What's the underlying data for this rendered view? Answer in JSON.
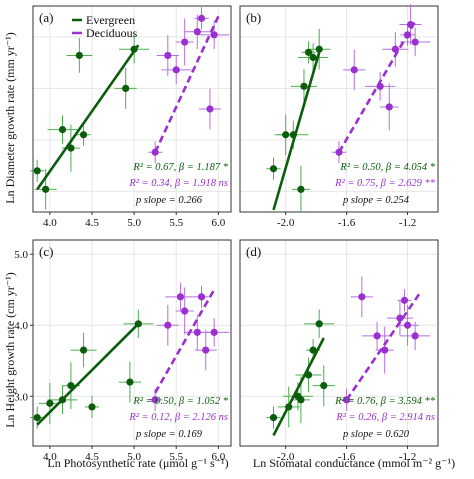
{
  "colors": {
    "evergreen": "#0b5d0b",
    "deciduous": "#9b30d0",
    "errEvergreen": "#4caf50",
    "errDeciduous": "#b86ee3",
    "axis": "#333333",
    "grid": "#e6e6e6"
  },
  "legend": {
    "evergreen": "Evergreen",
    "deciduous": "Deciduous"
  },
  "labels": {
    "y_top": "Ln Diameter growth rate (mm yr⁻¹)",
    "y_bottom": "Ln Height growth rate (cm yr⁻¹)",
    "x_left": "Ln Photosynthetic rate (μmol g⁻¹ s⁻¹)",
    "x_right": "Ln Stomatal conductance (mmol m⁻² g⁻¹)"
  },
  "chart_data": [
    {
      "type": "scatter",
      "panel": "(a)",
      "xlim": [
        3.8,
        6.15
      ],
      "ylim": [
        0.3,
        2.3
      ],
      "xticks": [
        "4.0",
        "4.5",
        "5.0",
        "5.5",
        "6.0"
      ],
      "yticks": [],
      "series": [
        {
          "name": "Evergreen",
          "points": [
            [
              3.85,
              0.7
            ],
            [
              3.95,
              0.52
            ],
            [
              4.15,
              1.1
            ],
            [
              4.25,
              0.92
            ],
            [
              4.35,
              1.82
            ],
            [
              4.4,
              1.05
            ],
            [
              4.9,
              1.5
            ],
            [
              5.0,
              1.88
            ]
          ]
        },
        {
          "name": "Deciduous",
          "points": [
            [
              5.25,
              0.88
            ],
            [
              5.4,
              1.82
            ],
            [
              5.5,
              1.68
            ],
            [
              5.6,
              1.95
            ],
            [
              5.75,
              2.05
            ],
            [
              5.8,
              2.18
            ],
            [
              5.9,
              1.3
            ],
            [
              5.95,
              2.02
            ]
          ]
        }
      ],
      "fits": {
        "evergreen": [
          [
            3.85,
            0.52
          ],
          [
            5.05,
            1.92
          ]
        ],
        "deciduous": [
          [
            5.25,
            0.88
          ],
          [
            6.0,
            2.2
          ]
        ]
      },
      "stats": {
        "evergreen": "R² = 0.67, β = 1.187 *",
        "deciduous": "R² = 0.34, β = 1.918 ns",
        "pslope": "p slope = 0.266"
      }
    },
    {
      "type": "scatter",
      "panel": "(b)",
      "xlim": [
        -2.3,
        -1.0
      ],
      "ylim": [
        0.3,
        2.3
      ],
      "xticks": [
        "-2.0",
        "-1.6",
        "-1.2"
      ],
      "yticks": [],
      "series": [
        {
          "name": "Evergreen",
          "points": [
            [
              -2.08,
              0.72
            ],
            [
              -2.0,
              1.05
            ],
            [
              -1.95,
              1.05
            ],
            [
              -1.9,
              0.52
            ],
            [
              -1.88,
              1.52
            ],
            [
              -1.85,
              1.85
            ],
            [
              -1.78,
              1.88
            ],
            [
              -1.82,
              1.8
            ]
          ]
        },
        {
          "name": "Deciduous",
          "points": [
            [
              -1.65,
              0.88
            ],
            [
              -1.55,
              1.68
            ],
            [
              -1.38,
              1.52
            ],
            [
              -1.32,
              1.32
            ],
            [
              -1.28,
              1.88
            ],
            [
              -1.2,
              2.02
            ],
            [
              -1.18,
              2.12
            ],
            [
              -1.15,
              1.95
            ]
          ]
        }
      ],
      "fits": {
        "evergreen": [
          [
            -2.08,
            0.32
          ],
          [
            -1.78,
            1.85
          ]
        ],
        "deciduous": [
          [
            -1.65,
            0.88
          ],
          [
            -1.15,
            2.15
          ]
        ]
      },
      "stats": {
        "evergreen": "R² = 0.50, β = 4.054 *",
        "deciduous": "R² = 0.75, β = 2.629 **",
        "pslope": "p slope = 0.254"
      }
    },
    {
      "type": "scatter",
      "panel": "(c)",
      "xlim": [
        3.8,
        6.15
      ],
      "ylim": [
        2.3,
        5.2
      ],
      "xticks": [
        "4.0",
        "4.5",
        "5.0",
        "5.5",
        "6.0"
      ],
      "yticks": [
        "3.0",
        "4.0",
        "5.0"
      ],
      "series": [
        {
          "name": "Evergreen",
          "points": [
            [
              3.85,
              2.7
            ],
            [
              4.0,
              2.9
            ],
            [
              4.15,
              2.95
            ],
            [
              4.25,
              3.15
            ],
            [
              4.4,
              3.65
            ],
            [
              4.5,
              2.85
            ],
            [
              4.95,
              3.2
            ],
            [
              5.05,
              4.02
            ]
          ]
        },
        {
          "name": "Deciduous",
          "points": [
            [
              5.25,
              2.95
            ],
            [
              5.4,
              4.0
            ],
            [
              5.55,
              4.4
            ],
            [
              5.6,
              4.2
            ],
            [
              5.75,
              3.9
            ],
            [
              5.8,
              4.4
            ],
            [
              5.85,
              3.65
            ],
            [
              5.95,
              3.9
            ]
          ]
        }
      ],
      "fits": {
        "evergreen": [
          [
            3.85,
            2.6
          ],
          [
            5.05,
            4.02
          ]
        ],
        "deciduous": [
          [
            5.25,
            3.05
          ],
          [
            5.95,
            4.5
          ]
        ]
      },
      "stats": {
        "evergreen": "R² = 0.50, β = 1.052 *",
        "deciduous": "R² = 0.12, β = 2.126 ns",
        "pslope": "p slope = 0.169"
      }
    },
    {
      "type": "scatter",
      "panel": "(d)",
      "xlim": [
        -2.3,
        -1.0
      ],
      "ylim": [
        2.3,
        5.2
      ],
      "xticks": [
        "-2.0",
        "-1.6",
        "-1.2"
      ],
      "yticks": [],
      "series": [
        {
          "name": "Evergreen",
          "points": [
            [
              -2.08,
              2.7
            ],
            [
              -1.98,
              2.85
            ],
            [
              -1.92,
              3.0
            ],
            [
              -1.9,
              2.95
            ],
            [
              -1.85,
              3.3
            ],
            [
              -1.82,
              3.65
            ],
            [
              -1.75,
              3.15
            ],
            [
              -1.78,
              4.02
            ]
          ]
        },
        {
          "name": "Deciduous",
          "points": [
            [
              -1.6,
              2.95
            ],
            [
              -1.5,
              4.4
            ],
            [
              -1.4,
              3.85
            ],
            [
              -1.35,
              3.65
            ],
            [
              -1.25,
              4.1
            ],
            [
              -1.22,
              4.35
            ],
            [
              -1.2,
              4.0
            ],
            [
              -1.15,
              3.85
            ]
          ]
        }
      ],
      "fits": {
        "evergreen": [
          [
            -2.08,
            2.45
          ],
          [
            -1.75,
            3.82
          ]
        ],
        "deciduous": [
          [
            -1.6,
            2.95
          ],
          [
            -1.12,
            4.45
          ]
        ]
      },
      "stats": {
        "evergreen": "R² = 0.76, β = 3.594 **",
        "deciduous": "R² = 0.26, β = 2.914 ns",
        "pslope": "p slope = 0.620"
      }
    }
  ]
}
